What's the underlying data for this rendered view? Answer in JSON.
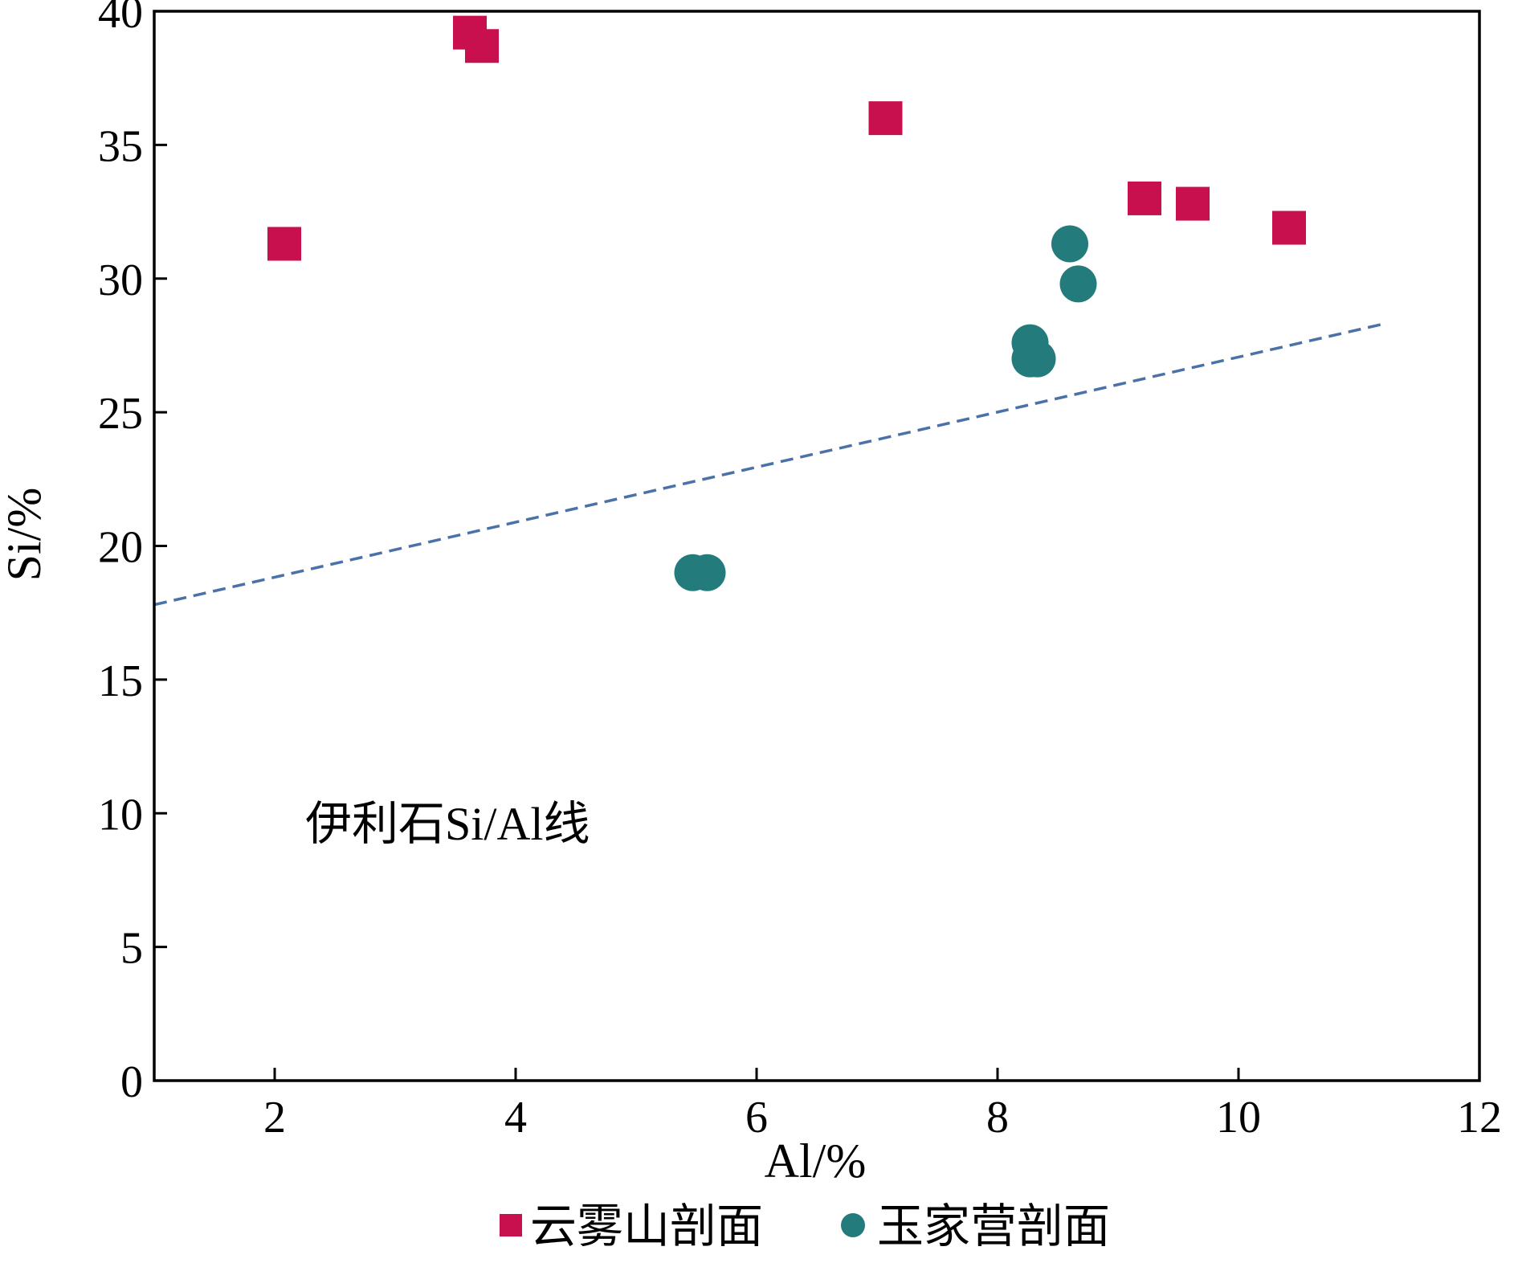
{
  "chart_data": {
    "type": "scatter",
    "xlabel": "Al/%",
    "ylabel": "Si/%",
    "xlim": [
      1,
      12
    ],
    "ylim": [
      0,
      40
    ],
    "x_ticks": [
      2,
      4,
      6,
      8,
      10,
      12
    ],
    "y_ticks": [
      0,
      5,
      10,
      15,
      20,
      25,
      30,
      35,
      40
    ],
    "grid": false,
    "legend_position": "bottom",
    "series": [
      {
        "name": "云雾山剖面",
        "marker": "square",
        "color": "#c8104e",
        "points": [
          {
            "x": 2.08,
            "y": 31.3
          },
          {
            "x": 3.62,
            "y": 39.2
          },
          {
            "x": 3.72,
            "y": 38.7
          },
          {
            "x": 7.07,
            "y": 36.0
          },
          {
            "x": 9.22,
            "y": 33.0
          },
          {
            "x": 9.62,
            "y": 32.8
          },
          {
            "x": 10.42,
            "y": 31.9
          }
        ]
      },
      {
        "name": "玉家营剖面",
        "marker": "circle",
        "color": "#237b7b",
        "points": [
          {
            "x": 5.47,
            "y": 19.0
          },
          {
            "x": 5.59,
            "y": 19.0
          },
          {
            "x": 8.27,
            "y": 27.6
          },
          {
            "x": 8.27,
            "y": 27.0
          },
          {
            "x": 8.33,
            "y": 27.0
          },
          {
            "x": 8.6,
            "y": 31.3
          },
          {
            "x": 8.67,
            "y": 29.8
          }
        ]
      }
    ],
    "reference_line": {
      "label": "伊利石Si/Al线",
      "color": "#4a72a8",
      "style": "dashed",
      "x": [
        1,
        11.2
      ],
      "y": [
        17.8,
        28.3
      ]
    },
    "annotations": [
      {
        "text": "伊利石Si/Al线"
      }
    ]
  }
}
